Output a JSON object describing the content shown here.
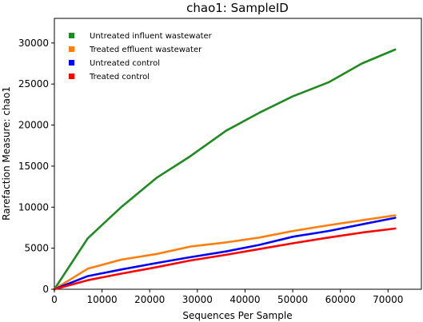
{
  "chart_data": {
    "type": "line",
    "title": "chao1: SampleID",
    "xlabel": "Sequences Per Sample",
    "ylabel": "Rarefaction Measure: chao1",
    "xlim": [
      0,
      77000
    ],
    "ylim": [
      0,
      33000
    ],
    "x_ticks": [
      0,
      10000,
      20000,
      30000,
      40000,
      50000,
      60000,
      70000
    ],
    "x_tick_labels": [
      "0",
      "10000",
      "20000",
      "30000",
      "40000",
      "50000",
      "60000",
      "70000"
    ],
    "y_ticks": [
      0,
      5000,
      10000,
      15000,
      20000,
      25000,
      30000
    ],
    "y_tick_labels": [
      "0",
      "5000",
      "10000",
      "15000",
      "20000",
      "25000",
      "30000"
    ],
    "grid": false,
    "legend_position": "top-left",
    "x": [
      0,
      7000,
      14000,
      21500,
      28500,
      36000,
      43000,
      50000,
      57500,
      64500,
      71500
    ],
    "series": [
      {
        "name": "Untreated influent wastewater",
        "color": "#1f8a1f",
        "values": [
          0,
          6200,
          10000,
          13600,
          16200,
          19300,
          21500,
          23500,
          25200,
          27500,
          29200
        ]
      },
      {
        "name": "Treated effluent wastewater",
        "color": "#ff7f0e",
        "values": [
          0,
          2500,
          3600,
          4300,
          5200,
          5700,
          6300,
          7100,
          7800,
          8400,
          9000
        ]
      },
      {
        "name": "Untreated control",
        "color": "#0000ff",
        "values": [
          0,
          1600,
          2400,
          3200,
          3900,
          4600,
          5400,
          6400,
          7100,
          7900,
          8700
        ]
      },
      {
        "name": "Treated control",
        "color": "#ff0000",
        "values": [
          0,
          1100,
          1900,
          2700,
          3500,
          4200,
          4900,
          5600,
          6300,
          6900,
          7400
        ]
      }
    ]
  }
}
